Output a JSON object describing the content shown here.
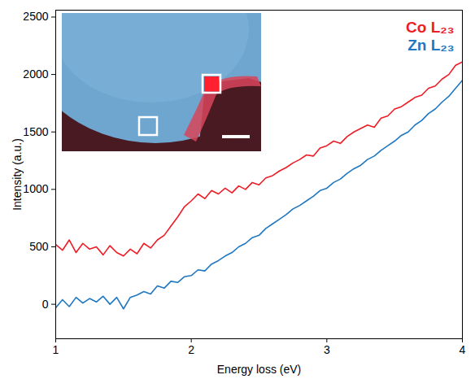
{
  "chart_data": {
    "type": "line",
    "x_label": "Energy loss (eV)",
    "y_label": "Intensity (a.u.)",
    "xlim": [
      1,
      4
    ],
    "xticks": [
      1,
      2,
      3,
      4
    ],
    "ylim": [
      -300,
      2560
    ],
    "yticks": [
      0,
      500,
      1000,
      1500,
      2000,
      2500
    ],
    "legend": "top-right",
    "x": [
      1.0,
      1.05,
      1.1,
      1.15,
      1.2,
      1.25,
      1.3,
      1.35,
      1.4,
      1.45,
      1.5,
      1.55,
      1.6,
      1.65,
      1.7,
      1.75,
      1.8,
      1.85,
      1.9,
      1.95,
      2.0,
      2.05,
      2.1,
      2.15,
      2.2,
      2.25,
      2.3,
      2.35,
      2.4,
      2.45,
      2.5,
      2.55,
      2.6,
      2.65,
      2.7,
      2.75,
      2.8,
      2.85,
      2.9,
      2.95,
      3.0,
      3.05,
      3.1,
      3.15,
      3.2,
      3.25,
      3.3,
      3.35,
      3.4,
      3.45,
      3.5,
      3.55,
      3.6,
      3.65,
      3.7,
      3.75,
      3.8,
      3.85,
      3.9,
      3.95,
      4.0
    ],
    "series": [
      {
        "name": "Co L₂₃",
        "color": "#ee1c25",
        "values": [
          520,
          470,
          560,
          450,
          530,
          480,
          500,
          430,
          510,
          450,
          420,
          480,
          440,
          530,
          490,
          560,
          600,
          680,
          760,
          850,
          900,
          960,
          920,
          990,
          960,
          1010,
          970,
          1030,
          1000,
          1060,
          1040,
          1100,
          1120,
          1160,
          1190,
          1230,
          1260,
          1300,
          1290,
          1360,
          1380,
          1420,
          1400,
          1460,
          1500,
          1530,
          1560,
          1540,
          1620,
          1640,
          1700,
          1720,
          1760,
          1800,
          1820,
          1880,
          1900,
          1960,
          2000,
          2080,
          2110
        ]
      },
      {
        "name": "Zn L₂₃",
        "color": "#1f78c1",
        "values": [
          -30,
          40,
          -20,
          60,
          10,
          50,
          20,
          70,
          0,
          60,
          -40,
          60,
          80,
          110,
          90,
          160,
          140,
          200,
          190,
          240,
          250,
          300,
          290,
          350,
          380,
          420,
          450,
          500,
          530,
          580,
          600,
          660,
          700,
          740,
          780,
          830,
          860,
          900,
          940,
          990,
          1010,
          1060,
          1090,
          1140,
          1180,
          1210,
          1260,
          1290,
          1340,
          1380,
          1420,
          1470,
          1500,
          1560,
          1600,
          1660,
          1700,
          1760,
          1810,
          1880,
          1950
        ]
      }
    ]
  }
}
